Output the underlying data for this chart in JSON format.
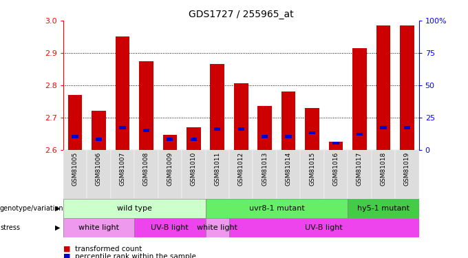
{
  "title": "GDS1727 / 255965_at",
  "samples": [
    "GSM81005",
    "GSM81006",
    "GSM81007",
    "GSM81008",
    "GSM81009",
    "GSM81010",
    "GSM81011",
    "GSM81012",
    "GSM81013",
    "GSM81014",
    "GSM81015",
    "GSM81016",
    "GSM81017",
    "GSM81018",
    "GSM81019"
  ],
  "transformed_count": [
    2.77,
    2.72,
    2.95,
    2.875,
    2.645,
    2.67,
    2.865,
    2.805,
    2.735,
    2.78,
    2.73,
    2.625,
    2.915,
    2.985,
    2.985
  ],
  "percentile_rank": [
    10,
    8,
    17,
    15,
    8,
    8,
    16,
    16,
    10,
    10,
    13,
    5,
    12,
    17,
    17
  ],
  "ylim": [
    2.6,
    3.0
  ],
  "yticks": [
    2.6,
    2.7,
    2.8,
    2.9,
    3.0
  ],
  "y2ticks": [
    0,
    25,
    50,
    75,
    100
  ],
  "bar_color": "#cc0000",
  "percentile_color": "#0000cc",
  "bar_bottom": 2.6,
  "genotype_groups": [
    {
      "label": "wild type",
      "start": 0,
      "end": 6,
      "color": "#ccffcc"
    },
    {
      "label": "uvr8-1 mutant",
      "start": 6,
      "end": 12,
      "color": "#66ee66"
    },
    {
      "label": "hy5-1 mutant",
      "start": 12,
      "end": 15,
      "color": "#44cc44"
    }
  ],
  "stress_groups": [
    {
      "label": "white light",
      "start": 0,
      "end": 3,
      "color": "#ee99ee"
    },
    {
      "label": "UV-B light",
      "start": 3,
      "end": 6,
      "color": "#ee44ee"
    },
    {
      "label": "white light",
      "start": 6,
      "end": 7,
      "color": "#ee99ee"
    },
    {
      "label": "UV-B light",
      "start": 7,
      "end": 15,
      "color": "#ee44ee"
    }
  ],
  "legend_items": [
    {
      "label": "transformed count",
      "color": "#cc0000"
    },
    {
      "label": "percentile rank within the sample",
      "color": "#0000cc"
    }
  ]
}
